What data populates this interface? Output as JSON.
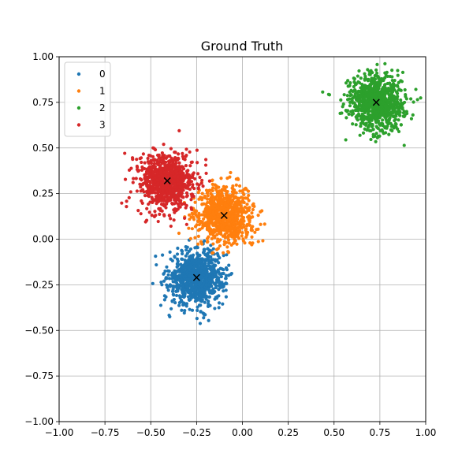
{
  "chart_data": {
    "type": "scatter",
    "title": "Ground Truth",
    "xlabel": "",
    "ylabel": "",
    "xlim": [
      -1.0,
      1.0
    ],
    "ylim": [
      -1.0,
      1.0
    ],
    "x_ticks": [
      "−1.00",
      "−0.75",
      "−0.50",
      "−0.25",
      "0.00",
      "0.25",
      "0.50",
      "0.75",
      "1.00"
    ],
    "y_ticks": [
      "−1.00",
      "−0.75",
      "−0.50",
      "−0.25",
      "0.00",
      "0.25",
      "0.50",
      "0.75",
      "1.00"
    ],
    "x_tick_values": [
      -1.0,
      -0.75,
      -0.5,
      -0.25,
      0.0,
      0.25,
      0.5,
      0.75,
      1.0
    ],
    "y_tick_values": [
      -1.0,
      -0.75,
      -0.5,
      -0.25,
      0.0,
      0.25,
      0.5,
      0.75,
      1.0
    ],
    "grid": true,
    "legend_position": "top-left",
    "series": [
      {
        "name": "0",
        "color": "#1f77b4",
        "center": [
          -0.25,
          -0.21
        ],
        "spread": 0.075,
        "point_count": 900
      },
      {
        "name": "1",
        "color": "#ff7f0e",
        "center": [
          -0.1,
          0.13
        ],
        "spread": 0.075,
        "point_count": 900
      },
      {
        "name": "2",
        "color": "#2ca02c",
        "center": [
          0.73,
          0.75
        ],
        "spread": 0.075,
        "point_count": 900
      },
      {
        "name": "3",
        "color": "#d62728",
        "center": [
          -0.41,
          0.32
        ],
        "spread": 0.075,
        "point_count": 900
      }
    ],
    "centroids": [
      {
        "label": "0",
        "x": -0.25,
        "y": -0.21
      },
      {
        "label": "1",
        "x": -0.1,
        "y": 0.13
      },
      {
        "label": "2",
        "x": 0.73,
        "y": 0.75
      },
      {
        "label": "3",
        "x": -0.41,
        "y": 0.32
      }
    ]
  }
}
